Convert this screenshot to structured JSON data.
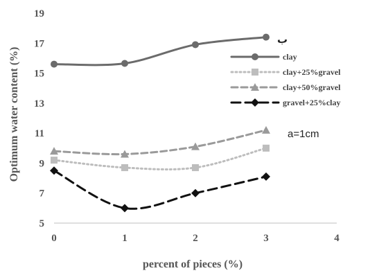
{
  "chart_data": {
    "type": "line",
    "x": [
      0,
      1,
      2,
      3
    ],
    "xlabel": "percent of pieces (%)",
    "ylabel": "Optimum water content (%)",
    "xlim": [
      0,
      4
    ],
    "ylim": [
      5,
      19
    ],
    "xticks": [
      "0",
      "1",
      "2",
      "3",
      "4"
    ],
    "yticks": [
      "5",
      "7",
      "9",
      "11",
      "13",
      "15",
      "17",
      "19"
    ],
    "grid": false,
    "legend_position": "right",
    "series": [
      {
        "name": "clay",
        "values": [
          15.6,
          15.65,
          16.9,
          17.4
        ],
        "color": "#6b6b6b",
        "dash": "solid",
        "marker": "circle"
      },
      {
        "name": "clay+25%gravel",
        "values": [
          9.2,
          8.7,
          8.7,
          10.0
        ],
        "color": "#bdbdbd",
        "dash": "dotted",
        "marker": "square"
      },
      {
        "name": "clay+50%gravel",
        "values": [
          9.8,
          9.6,
          10.1,
          11.2
        ],
        "color": "#9a9a9a",
        "dash": "dashed",
        "marker": "triangle"
      },
      {
        "name": "gravel+25%clay",
        "values": [
          8.5,
          6.0,
          7.0,
          8.1
        ],
        "color": "#111111",
        "dash": "longdash",
        "marker": "diamond"
      }
    ],
    "annotations": [
      "a=1cm",
      "ب"
    ]
  }
}
